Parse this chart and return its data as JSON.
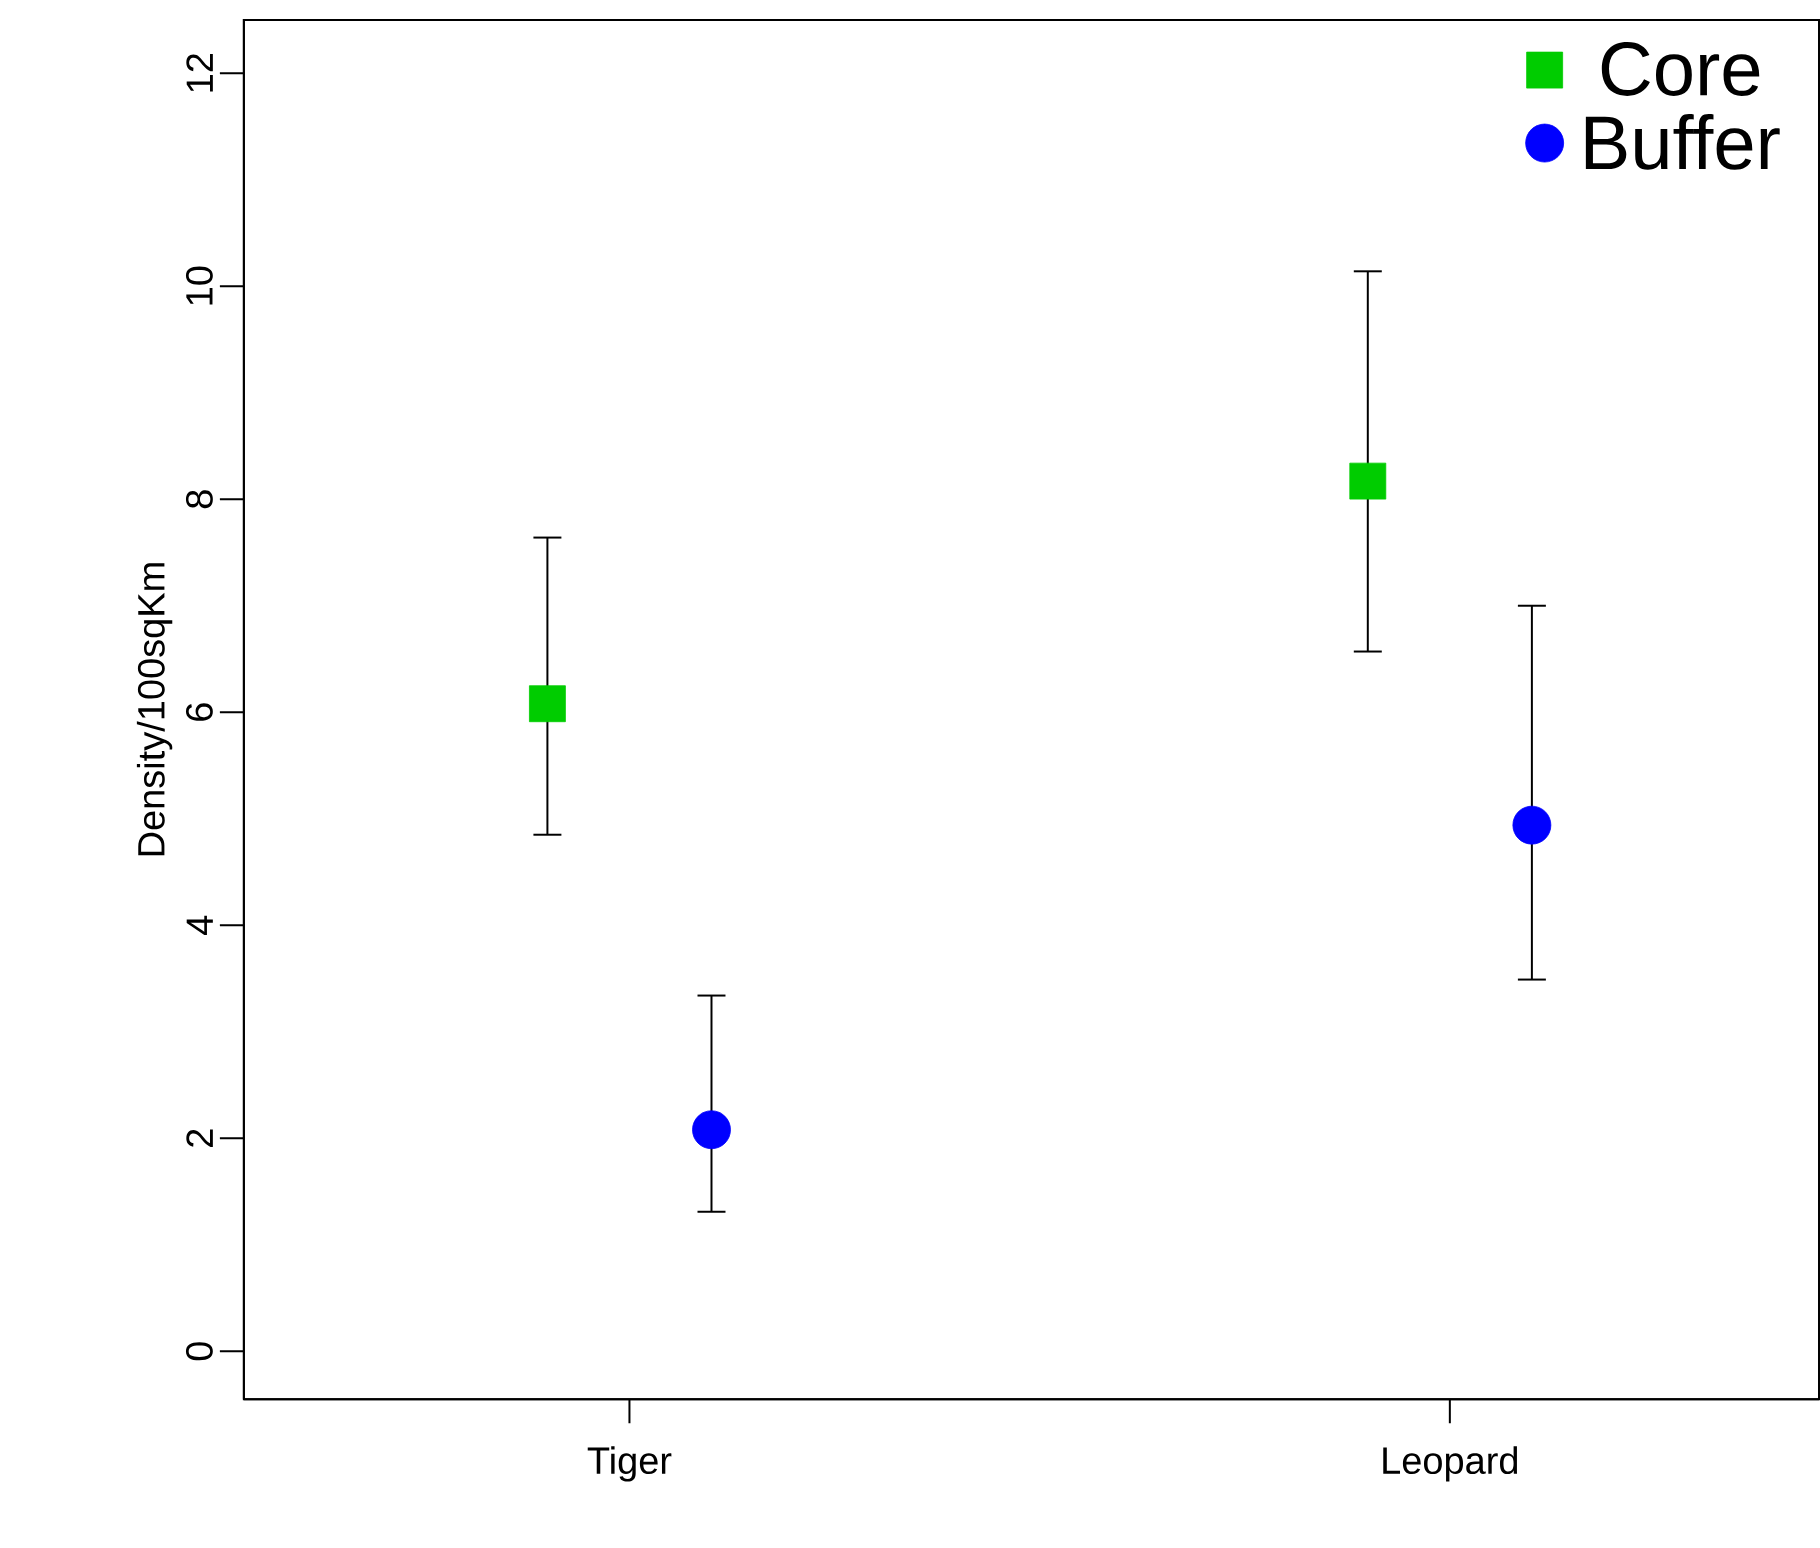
{
  "chart_data": {
    "type": "scatter",
    "ylabel": "Density/100sqKm",
    "categories": [
      "Tiger",
      "Leopard"
    ],
    "ylim": [
      -0.45,
      12.5
    ],
    "yticks": [
      0,
      2,
      4,
      6,
      8,
      10,
      12
    ],
    "legend": "top right",
    "series": [
      {
        "name": "Core",
        "color": "#00cc00",
        "marker": "square",
        "values": [
          6.08,
          8.17
        ],
        "errors": [
          [
            4.85,
            7.64
          ],
          [
            6.57,
            10.14
          ]
        ]
      },
      {
        "name": "Buffer",
        "color": "#0000ff",
        "marker": "circle",
        "values": [
          2.08,
          4.94
        ],
        "errors": [
          [
            1.31,
            3.34
          ],
          [
            3.49,
            7.0
          ]
        ]
      }
    ]
  }
}
